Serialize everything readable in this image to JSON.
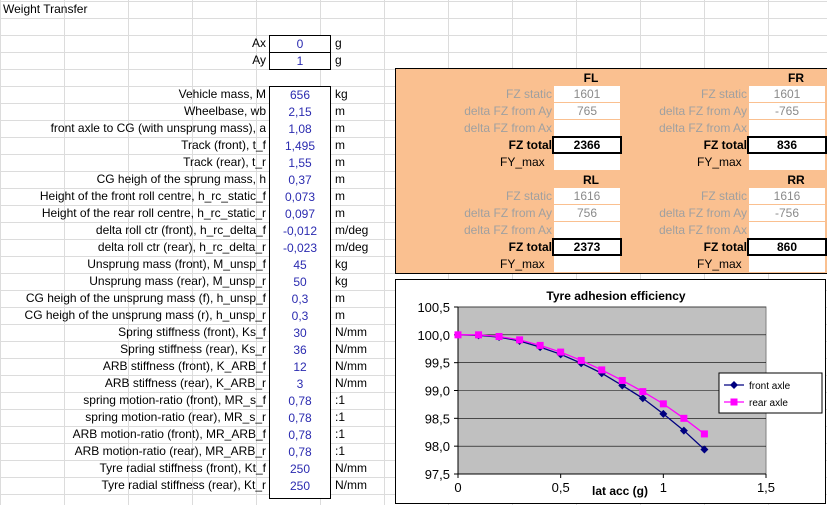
{
  "sheet": {
    "title": "Weight Transfer"
  },
  "inputs_top": [
    {
      "label": "Ax",
      "value": "0",
      "unit": "g"
    },
    {
      "label": "Ay",
      "value": "1",
      "unit": "g"
    }
  ],
  "params": [
    {
      "label": "Vehicle mass, M",
      "value": "656",
      "unit": "kg"
    },
    {
      "label": "Wheelbase, wb",
      "value": "2,15",
      "unit": "m"
    },
    {
      "label": "front axle to CG (with unsprung mass), a",
      "value": "1,08",
      "unit": "m"
    },
    {
      "label": "Track (front), t_f",
      "value": "1,495",
      "unit": "m"
    },
    {
      "label": "Track (rear), t_r",
      "value": "1,55",
      "unit": "m"
    },
    {
      "label": "CG heigh of the sprung mass, h",
      "value": "0,37",
      "unit": "m"
    },
    {
      "label": "Height of the front roll centre, h_rc_static_f",
      "value": "0,073",
      "unit": "m"
    },
    {
      "label": "Height of the rear roll centre, h_rc_static_r",
      "value": "0,097",
      "unit": "m"
    },
    {
      "label": "delta roll ctr (front), h_rc_delta_f",
      "value": "-0,012",
      "unit": "m/deg"
    },
    {
      "label": "delta roll ctr (rear), h_rc_delta_r",
      "value": "-0,023",
      "unit": "m/deg"
    },
    {
      "label": "Unsprung mass (front), M_unsp_f",
      "value": "45",
      "unit": "kg"
    },
    {
      "label": "Unsprung mass (rear), M_unsp_r",
      "value": "50",
      "unit": "kg"
    },
    {
      "label": "CG heigh of the unsprung mass (f), h_unsp_f",
      "value": "0,3",
      "unit": "m"
    },
    {
      "label": "CG heigh of the unsprung mass (r), h_unsp_r",
      "value": "0,3",
      "unit": "m"
    },
    {
      "label": "Spring stiffness (front), Ks_f",
      "value": "30",
      "unit": "N/mm"
    },
    {
      "label": "Spring stiffness (rear), Ks_r",
      "value": "36",
      "unit": "N/mm"
    },
    {
      "label": "ARB stiffness (front), K_ARB_f",
      "value": "12",
      "unit": "N/mm"
    },
    {
      "label": "ARB stiffness (rear), K_ARB_r",
      "value": "3",
      "unit": "N/mm"
    },
    {
      "label": "spring motion-ratio (front), MR_s_f",
      "value": "0,78",
      "unit": ":1"
    },
    {
      "label": "spring motion-ratio (rear), MR_s_r",
      "value": "0,78",
      "unit": ":1"
    },
    {
      "label": "ARB motion-ratio (front), MR_ARB_f",
      "value": "0,78",
      "unit": ":1"
    },
    {
      "label": "ARB motion-ratio (rear), MR_ARB_r",
      "value": "0,78",
      "unit": ":1"
    },
    {
      "label": "Tyre radial stiffness (front), Kt_f",
      "value": "250",
      "unit": "N/mm"
    },
    {
      "label": "Tyre radial stiffness (rear), Kt_r",
      "value": "250",
      "unit": "N/mm"
    }
  ],
  "wheels": {
    "labels": {
      "fz_static": "FZ static",
      "dfz_ay": "delta FZ from Ay",
      "dfz_ax": "delta FZ from Ax",
      "fz_total": "FZ total",
      "fy_max": "FY_max"
    },
    "FL": {
      "name": "FL",
      "fz_static": "1601",
      "dfz_ay": "765",
      "fz_total": "2366"
    },
    "FR": {
      "name": "FR",
      "fz_static": "1601",
      "dfz_ay": "-765",
      "fz_total": "836"
    },
    "RL": {
      "name": "RL",
      "fz_static": "1616",
      "dfz_ay": "756",
      "fz_total": "2373"
    },
    "RR": {
      "name": "RR",
      "fz_static": "1616",
      "dfz_ay": "-756",
      "fz_total": "860"
    }
  },
  "chart_data": {
    "type": "line",
    "title": "Tyre adhesion efficiency",
    "xlabel": "lat acc (g)",
    "ylabel": "",
    "xlim": [
      0,
      1.5
    ],
    "ylim": [
      97.5,
      100.5
    ],
    "xticks": [
      "0",
      "0,5",
      "1",
      "1,5"
    ],
    "yticks": [
      "97,5",
      "98,0",
      "98,5",
      "99,0",
      "99,5",
      "100,0",
      "100,5"
    ],
    "grid": true,
    "legend": "right",
    "series": [
      {
        "name": "front axle",
        "color": "#000080",
        "marker": "diamond",
        "x": [
          0,
          0.1,
          0.2,
          0.3,
          0.4,
          0.5,
          0.6,
          0.7,
          0.8,
          0.9,
          1.0,
          1.1,
          1.2
        ],
        "y": [
          100.0,
          99.99,
          99.96,
          99.89,
          99.78,
          99.65,
          99.49,
          99.31,
          99.09,
          98.86,
          98.58,
          98.28,
          97.94
        ]
      },
      {
        "name": "rear axle",
        "color": "#ff00ff",
        "marker": "square",
        "x": [
          0,
          0.1,
          0.2,
          0.3,
          0.4,
          0.5,
          0.6,
          0.7,
          0.8,
          0.9,
          1.0,
          1.1,
          1.2
        ],
        "y": [
          100.0,
          100.0,
          99.97,
          99.91,
          99.81,
          99.69,
          99.54,
          99.37,
          99.18,
          98.98,
          98.76,
          98.5,
          98.22
        ]
      }
    ]
  }
}
